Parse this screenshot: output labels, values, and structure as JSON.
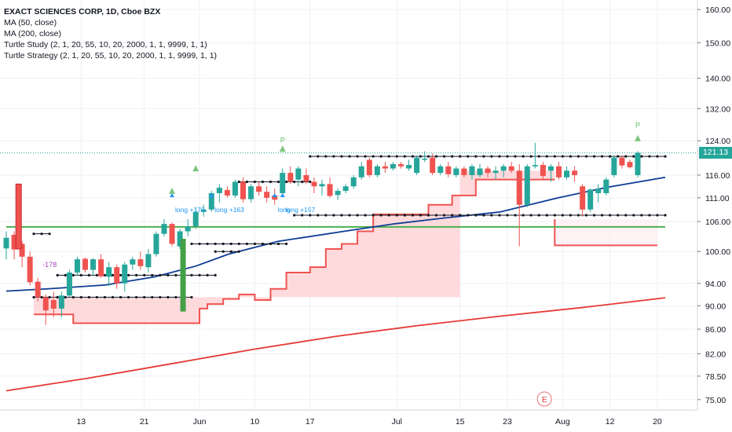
{
  "legend": {
    "title": "EXACT SCIENCES CORP, 1D, Cboe BZX",
    "lines": [
      "MA (50, close)",
      "MA (200, close)",
      "Turtle Study (2, 1, 20, 55, 10, 20, 2000, 1, 1, 9999, 1, 1)",
      "Turtle Strategy (2, 1, 20, 55, 10, 20, 2000, 1, 1, 9999, 1, 1)"
    ]
  },
  "last_price": "121.13",
  "colors": {
    "up": "#26a69a",
    "down": "#ef5350",
    "ma50": "#0d3c94",
    "ma200": "#e53935",
    "channel": "#131722",
    "fill": "#ffcdd2",
    "stop": "#ef5350",
    "level": "#4caf50",
    "grid": "#eef0f4"
  },
  "chart_data": {
    "type": "candlestick",
    "symbol": "EXACT SCIENCES CORP",
    "interval": "1D",
    "exchange": "Cboe BZX",
    "x_ticks": [
      "13",
      "21",
      "Jun",
      "10",
      "17",
      "Jul",
      "15",
      "23",
      "Aug",
      "12",
      "20"
    ],
    "x_tick_index": [
      6,
      14,
      21,
      28,
      35,
      46,
      54,
      60,
      67,
      73,
      79
    ],
    "y_ticks": [
      75.0,
      78.5,
      82.0,
      86.0,
      90.0,
      94.0,
      100.0,
      106.0,
      111.0,
      116.0,
      124.0,
      132.0,
      140.0,
      150.0,
      160.0
    ],
    "y_range": [
      73.5,
      163.0
    ],
    "y_scale": "log",
    "candles": [
      {
        "o": 100.6,
        "h": 104.0,
        "l": 98.5,
        "c": 102.7
      },
      {
        "o": 103.3,
        "h": 104.0,
        "l": 98.5,
        "c": 100.4
      },
      {
        "o": 101.5,
        "h": 102.0,
        "l": 97.0,
        "c": 99.0
      },
      {
        "o": 99.0,
        "h": 100.0,
        "l": 93.6,
        "c": 94.2
      },
      {
        "o": 94.3,
        "h": 95.0,
        "l": 90.8,
        "c": 91.5
      },
      {
        "o": 91.5,
        "h": 92.0,
        "l": 86.7,
        "c": 89.2
      },
      {
        "o": 91.0,
        "h": 92.5,
        "l": 88.0,
        "c": 89.5
      },
      {
        "o": 89.5,
        "h": 92.5,
        "l": 88.0,
        "c": 91.8
      },
      {
        "o": 91.8,
        "h": 96.5,
        "l": 91.5,
        "c": 96.0
      },
      {
        "o": 96.0,
        "h": 99.0,
        "l": 95.5,
        "c": 98.5
      },
      {
        "o": 98.6,
        "h": 98.8,
        "l": 96.0,
        "c": 96.5
      },
      {
        "o": 96.5,
        "h": 98.7,
        "l": 95.5,
        "c": 98.5
      },
      {
        "o": 98.5,
        "h": 99.5,
        "l": 95.0,
        "c": 95.3
      },
      {
        "o": 95.2,
        "h": 98.0,
        "l": 93.5,
        "c": 97.0
      },
      {
        "o": 97.0,
        "h": 97.5,
        "l": 93.0,
        "c": 94.0
      },
      {
        "o": 94.0,
        "h": 98.0,
        "l": 92.5,
        "c": 97.5
      },
      {
        "o": 97.5,
        "h": 99.0,
        "l": 96.5,
        "c": 98.5
      },
      {
        "o": 98.5,
        "h": 100.0,
        "l": 96.5,
        "c": 97.2
      },
      {
        "o": 97.0,
        "h": 100.5,
        "l": 96.0,
        "c": 99.5
      },
      {
        "o": 99.5,
        "h": 104.0,
        "l": 99.0,
        "c": 103.5
      },
      {
        "o": 103.5,
        "h": 106.5,
        "l": 103.0,
        "c": 105.5
      },
      {
        "o": 105.5,
        "h": 105.8,
        "l": 101.0,
        "c": 101.5
      },
      {
        "o": 101.0,
        "h": 104.5,
        "l": 100.5,
        "c": 104.0
      },
      {
        "o": 104.0,
        "h": 106.5,
        "l": 103.0,
        "c": 105.0
      },
      {
        "o": 105.0,
        "h": 109.0,
        "l": 104.5,
        "c": 108.0
      },
      {
        "o": 108.0,
        "h": 109.5,
        "l": 107.0,
        "c": 108.5
      },
      {
        "o": 108.5,
        "h": 112.5,
        "l": 108.0,
        "c": 112.0
      },
      {
        "o": 112.0,
        "h": 114.0,
        "l": 110.0,
        "c": 113.2
      },
      {
        "o": 112.7,
        "h": 113.5,
        "l": 111.0,
        "c": 111.5
      },
      {
        "o": 111.5,
        "h": 115.0,
        "l": 111.0,
        "c": 114.5
      },
      {
        "o": 114.5,
        "h": 115.5,
        "l": 110.0,
        "c": 110.7
      },
      {
        "o": 110.7,
        "h": 114.0,
        "l": 110.0,
        "c": 113.5
      },
      {
        "o": 113.5,
        "h": 114.5,
        "l": 111.5,
        "c": 112.3
      },
      {
        "o": 112.3,
        "h": 113.5,
        "l": 110.0,
        "c": 111.0
      },
      {
        "o": 111.5,
        "h": 113.0,
        "l": 109.5,
        "c": 110.6
      },
      {
        "o": 112.0,
        "h": 117.5,
        "l": 111.5,
        "c": 116.5
      },
      {
        "o": 116.5,
        "h": 118.0,
        "l": 114.0,
        "c": 114.5
      },
      {
        "o": 115.0,
        "h": 118.0,
        "l": 113.5,
        "c": 117.5
      },
      {
        "o": 116.0,
        "h": 117.5,
        "l": 114.0,
        "c": 114.6
      },
      {
        "o": 114.5,
        "h": 115.5,
        "l": 112.0,
        "c": 113.5
      },
      {
        "o": 113.5,
        "h": 115.0,
        "l": 111.5,
        "c": 114.0
      },
      {
        "o": 114.0,
        "h": 115.5,
        "l": 111.0,
        "c": 111.4
      },
      {
        "o": 111.6,
        "h": 113.0,
        "l": 110.5,
        "c": 112.5
      },
      {
        "o": 112.5,
        "h": 114.0,
        "l": 112.0,
        "c": 113.5
      },
      {
        "o": 113.5,
        "h": 116.0,
        "l": 113.0,
        "c": 115.5
      },
      {
        "o": 115.5,
        "h": 119.0,
        "l": 115.0,
        "c": 118.0
      },
      {
        "o": 119.5,
        "h": 120.0,
        "l": 115.5,
        "c": 116.0
      },
      {
        "o": 116.0,
        "h": 118.5,
        "l": 115.5,
        "c": 118.0
      },
      {
        "o": 118.0,
        "h": 119.0,
        "l": 116.5,
        "c": 117.5
      },
      {
        "o": 117.5,
        "h": 119.0,
        "l": 117.0,
        "c": 118.5
      },
      {
        "o": 118.5,
        "h": 119.0,
        "l": 117.5,
        "c": 118.0
      },
      {
        "o": 117.5,
        "h": 119.5,
        "l": 117.0,
        "c": 118.3
      },
      {
        "o": 116.5,
        "h": 120.5,
        "l": 116.0,
        "c": 120.0
      },
      {
        "o": 119.5,
        "h": 121.5,
        "l": 119.0,
        "c": 119.8
      },
      {
        "o": 120.0,
        "h": 121.0,
        "l": 116.0,
        "c": 116.5
      },
      {
        "o": 116.5,
        "h": 118.5,
        "l": 116.0,
        "c": 118.0
      },
      {
        "o": 118.0,
        "h": 119.0,
        "l": 115.5,
        "c": 116.2
      },
      {
        "o": 116.0,
        "h": 118.0,
        "l": 115.5,
        "c": 117.5
      },
      {
        "o": 117.5,
        "h": 118.0,
        "l": 115.5,
        "c": 116.0
      },
      {
        "o": 116.0,
        "h": 118.5,
        "l": 115.0,
        "c": 118.0
      },
      {
        "o": 116.0,
        "h": 118.5,
        "l": 115.5,
        "c": 117.5
      },
      {
        "o": 117.5,
        "h": 118.0,
        "l": 115.5,
        "c": 116.5
      },
      {
        "o": 116.5,
        "h": 118.0,
        "l": 115.0,
        "c": 117.0
      },
      {
        "o": 117.0,
        "h": 118.5,
        "l": 115.5,
        "c": 118.0
      },
      {
        "o": 118.0,
        "h": 119.0,
        "l": 116.5,
        "c": 117.0
      },
      {
        "o": 117.0,
        "h": 118.5,
        "l": 101.0,
        "c": 109.5
      },
      {
        "o": 109.5,
        "h": 118.5,
        "l": 109.0,
        "c": 118.0
      },
      {
        "o": 118.0,
        "h": 123.5,
        "l": 117.5,
        "c": 118.3
      },
      {
        "o": 118.3,
        "h": 119.0,
        "l": 115.0,
        "c": 115.8
      },
      {
        "o": 117.0,
        "h": 118.5,
        "l": 114.5,
        "c": 118.0
      },
      {
        "o": 118.0,
        "h": 119.0,
        "l": 115.0,
        "c": 115.5
      },
      {
        "o": 115.5,
        "h": 118.0,
        "l": 115.0,
        "c": 117.0
      },
      {
        "o": 117.0,
        "h": 118.0,
        "l": 114.5,
        "c": 116.0
      },
      {
        "o": 113.5,
        "h": 114.0,
        "l": 107.0,
        "c": 108.5
      },
      {
        "o": 108.5,
        "h": 113.0,
        "l": 108.0,
        "c": 112.8
      },
      {
        "o": 112.0,
        "h": 114.0,
        "l": 110.0,
        "c": 113.0
      },
      {
        "o": 112.0,
        "h": 115.5,
        "l": 111.5,
        "c": 115.0
      },
      {
        "o": 116.0,
        "h": 120.5,
        "l": 115.5,
        "c": 120.0
      },
      {
        "o": 120.0,
        "h": 120.5,
        "l": 117.5,
        "c": 118.2
      },
      {
        "o": 119.0,
        "h": 119.5,
        "l": 117.5,
        "c": 117.8
      },
      {
        "o": 116.0,
        "h": 121.5,
        "l": 115.5,
        "c": 121.13
      }
    ],
    "ma50": [
      {
        "i": 0,
        "v": 92.6
      },
      {
        "i": 5,
        "v": 93.0
      },
      {
        "i": 12,
        "v": 93.7
      },
      {
        "i": 18,
        "v": 95.2
      },
      {
        "i": 23,
        "v": 97.2
      },
      {
        "i": 27,
        "v": 99.5
      },
      {
        "i": 33,
        "v": 102.0
      },
      {
        "i": 41,
        "v": 104.0
      },
      {
        "i": 47,
        "v": 105.5
      },
      {
        "i": 53,
        "v": 106.7
      },
      {
        "i": 60,
        "v": 108.0
      },
      {
        "i": 67,
        "v": 111.0
      },
      {
        "i": 73,
        "v": 113.3
      },
      {
        "i": 80,
        "v": 115.5
      }
    ],
    "ma200": [
      {
        "i": 0,
        "v": 76.3
      },
      {
        "i": 10,
        "v": 78.2
      },
      {
        "i": 20,
        "v": 80.4
      },
      {
        "i": 30,
        "v": 82.7
      },
      {
        "i": 40,
        "v": 84.8
      },
      {
        "i": 50,
        "v": 86.6
      },
      {
        "i": 60,
        "v": 88.2
      },
      {
        "i": 70,
        "v": 89.7
      },
      {
        "i": 80,
        "v": 91.4
      }
    ],
    "channel_upper": [
      {
        "from": 0,
        "to": 2,
        "v": 103.5
      },
      {
        "from": 3,
        "to": 23,
        "v": 95.5
      },
      {
        "from": 23,
        "to": 26,
        "v": 100.0
      },
      {
        "from": 26,
        "to": 35,
        "v": 114.5
      },
      {
        "from": 35,
        "to": 73,
        "v": 120.3
      },
      {
        "from": 73,
        "to": 80,
        "v": 120.3
      }
    ],
    "channel_lower": [
      {
        "from": 0,
        "to": 3,
        "v": 91.5
      },
      {
        "from": 3,
        "to": 20,
        "v": 91.5
      },
      {
        "from": 20,
        "to": 32,
        "v": 101.5
      },
      {
        "from": 33,
        "to": 47,
        "v": 107.3
      },
      {
        "from": 47,
        "to": 65,
        "v": 107.3
      },
      {
        "from": 65,
        "to": 80,
        "v": 107.3
      }
    ],
    "turtle_stop": [
      {
        "i": 0,
        "v": 88.5
      },
      {
        "i": 5,
        "v": 87.0
      },
      {
        "i": 21,
        "v": 89.5
      },
      {
        "i": 22,
        "v": 90.3
      },
      {
        "i": 24,
        "v": 91.2
      },
      {
        "i": 26,
        "v": 92.0
      },
      {
        "i": 28,
        "v": 91.0
      },
      {
        "i": 30,
        "v": 93.0
      },
      {
        "i": 32,
        "v": 96.0
      },
      {
        "i": 35,
        "v": 97.0
      },
      {
        "i": 37,
        "v": 100.5
      },
      {
        "i": 39,
        "v": 101.5
      },
      {
        "i": 41,
        "v": 104.0
      },
      {
        "i": 43,
        "v": 107.5
      },
      {
        "i": 46,
        "v": 107.5
      },
      {
        "i": 50,
        "v": 109.5
      },
      {
        "i": 53,
        "v": 111.5
      },
      {
        "i": 56,
        "v": 115.0
      },
      {
        "i": 66,
        "v": 115.0
      }
    ],
    "stop_after": [
      {
        "from": 66,
        "to": 79,
        "v": 101.2
      }
    ],
    "level_line": {
      "v": 104.9,
      "from": 0,
      "to": 80
    },
    "signals": [
      {
        "i": 4,
        "type": "entry-short",
        "label": "-178"
      },
      {
        "i": 35,
        "type": "entry-long",
        "label": "long +157"
      },
      {
        "i": 34,
        "type": "entry-long",
        "label": "long"
      },
      {
        "i": 21,
        "type": "entry-long",
        "label": "long +170"
      },
      {
        "i": 26,
        "type": "entry-long",
        "label": "long +163"
      }
    ],
    "triangles": [
      {
        "i": 21,
        "v": 111.5
      },
      {
        "i": 24,
        "v": 116.5
      },
      {
        "i": 35,
        "v": 121.0
      },
      {
        "i": 80,
        "v": 123.5
      }
    ],
    "p_labels": [
      {
        "i": 35,
        "v": 121.0
      },
      {
        "i": 80,
        "v": 124.5
      }
    ],
    "last_price": 121.13,
    "earnings_marker": {
      "i": 63,
      "label": "E"
    }
  }
}
